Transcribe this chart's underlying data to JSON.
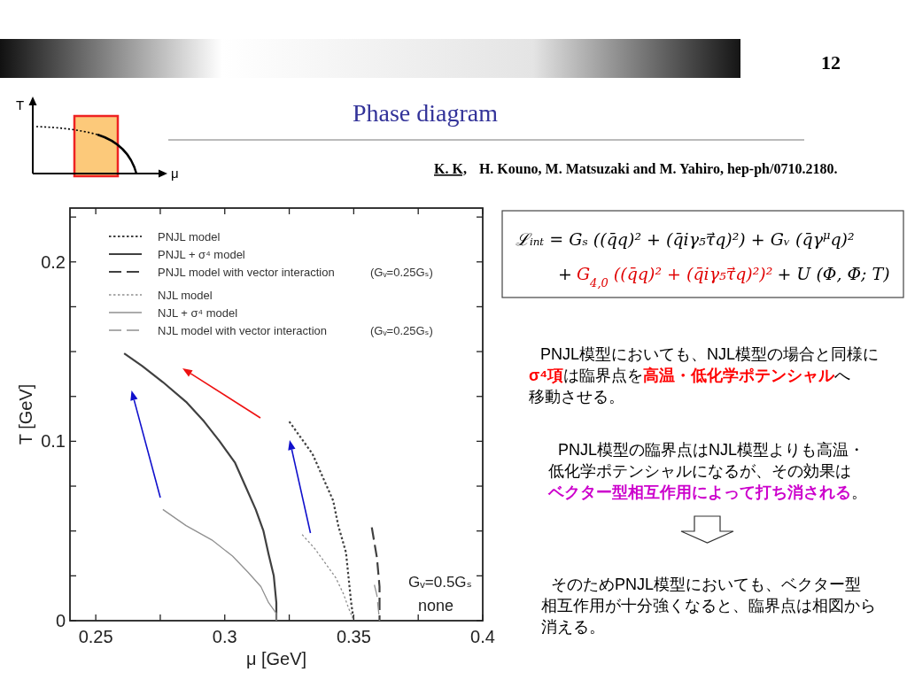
{
  "chart_data": {
    "type": "line",
    "title": "Phase diagram",
    "xlabel": "μ [GeV]",
    "ylabel": "T [GeV]",
    "xlim": [
      0.24,
      0.4
    ],
    "ylim": [
      0,
      0.23
    ],
    "xticks": [
      0.25,
      {
        "value": 0.275,
        "label": null
      },
      0.3,
      {
        "value": 0.325,
        "label": null
      },
      0.35,
      {
        "value": 0.375,
        "label": null
      },
      0.4
    ],
    "yticks": [
      0,
      {
        "value": 0.025,
        "label": null
      },
      {
        "value": 0.05,
        "label": null
      },
      {
        "value": 0.075,
        "label": null
      },
      0.1,
      {
        "value": 0.125,
        "label": null
      },
      {
        "value": 0.15,
        "label": null
      },
      {
        "value": 0.175,
        "label": null
      },
      0.2,
      {
        "value": 0.225,
        "label": null
      }
    ],
    "legend": "top left",
    "series": [
      {
        "name": "PNJL model",
        "color": "#404040",
        "line_style": "dotted",
        "x": [
          0.325,
          0.329,
          0.334,
          0.338,
          0.342,
          0.344,
          0.347,
          0.348,
          0.349,
          0.35
        ],
        "values": [
          0.111,
          0.103,
          0.093,
          0.08,
          0.067,
          0.053,
          0.038,
          0.024,
          0.01,
          0
        ]
      },
      {
        "name": "PNJL + σ⁴ model",
        "color": "#404040",
        "line_style": "solid",
        "x": [
          0.261,
          0.268,
          0.276,
          0.285,
          0.292,
          0.298,
          0.304,
          0.308,
          0.312,
          0.315,
          0.317,
          0.319,
          0.32,
          0.32
        ],
        "values": [
          0.149,
          0.142,
          0.133,
          0.122,
          0.111,
          0.1,
          0.088,
          0.075,
          0.062,
          0.05,
          0.037,
          0.025,
          0.01,
          0
        ]
      },
      {
        "name": "PNJL model with vector interaction",
        "color": "#404040",
        "line_style": "dashed",
        "x": [
          0.357,
          0.359,
          0.36,
          0.36
        ],
        "values": [
          0.052,
          0.035,
          0.019,
          0
        ]
      },
      {
        "name": "NJL model",
        "color": "#909090",
        "line_style": "dotted",
        "x": [
          0.33,
          0.335,
          0.339,
          0.343,
          0.346,
          0.348,
          0.35
        ],
        "values": [
          0.048,
          0.04,
          0.032,
          0.024,
          0.015,
          0.007,
          0
        ]
      },
      {
        "name": "NJL + σ⁴ model",
        "color": "#909090",
        "line_style": "solid",
        "x": [
          0.276,
          0.285,
          0.295,
          0.303,
          0.309,
          0.314,
          0.317,
          0.32,
          0.32
        ],
        "values": [
          0.062,
          0.053,
          0.045,
          0.036,
          0.027,
          0.019,
          0.01,
          0.004,
          0
        ]
      },
      {
        "name": "NJL model with vector interaction",
        "color": "#909090",
        "line_style": "dashed",
        "x": [
          0.358,
          0.359,
          0.36
        ],
        "values": [
          0.02,
          0.014,
          0
        ]
      }
    ],
    "annotations": [
      "12",
      "K. K,",
      "H. Kouno, M. Matsuzaki and M. Yahiro, hep-ph/0710.2180.",
      "ℒᵢₙₜ = Gₛ ((q̄q)² + (q̄iγ₅τ⃗q)²) + Gᵥ (q̄γ$^{μ}$q)²",
      "+",
      "G$_{4,0}$ ((q̄q)² + (q̄iγ₅τ⃗q)²)²",
      "+ U (Φ, Φ̄; T)",
      "PNJL模型においても、NJL模型の場合と同様に",
      "σ⁴項",
      "は臨界点を",
      "高温・低化学ポテンシャル",
      "へ",
      "移動させる。",
      "PNJL模型の臨界点はNJL模型よりも高温・",
      "低化学ポテンシャルになるが、その効果は",
      "ベクター型相互作用によって打ち消される",
      "。",
      "そのためPNJL模型においても、ベクター型",
      "相互作用が十分強くなると、臨界点は相図から",
      "消える。",
      "(Gᵥ=0.25Gₛ)",
      "(Gᵥ=0.25Gₛ)",
      "Gᵥ=0.5Gₛ",
      "none",
      "T",
      "μ"
    ]
  }
}
